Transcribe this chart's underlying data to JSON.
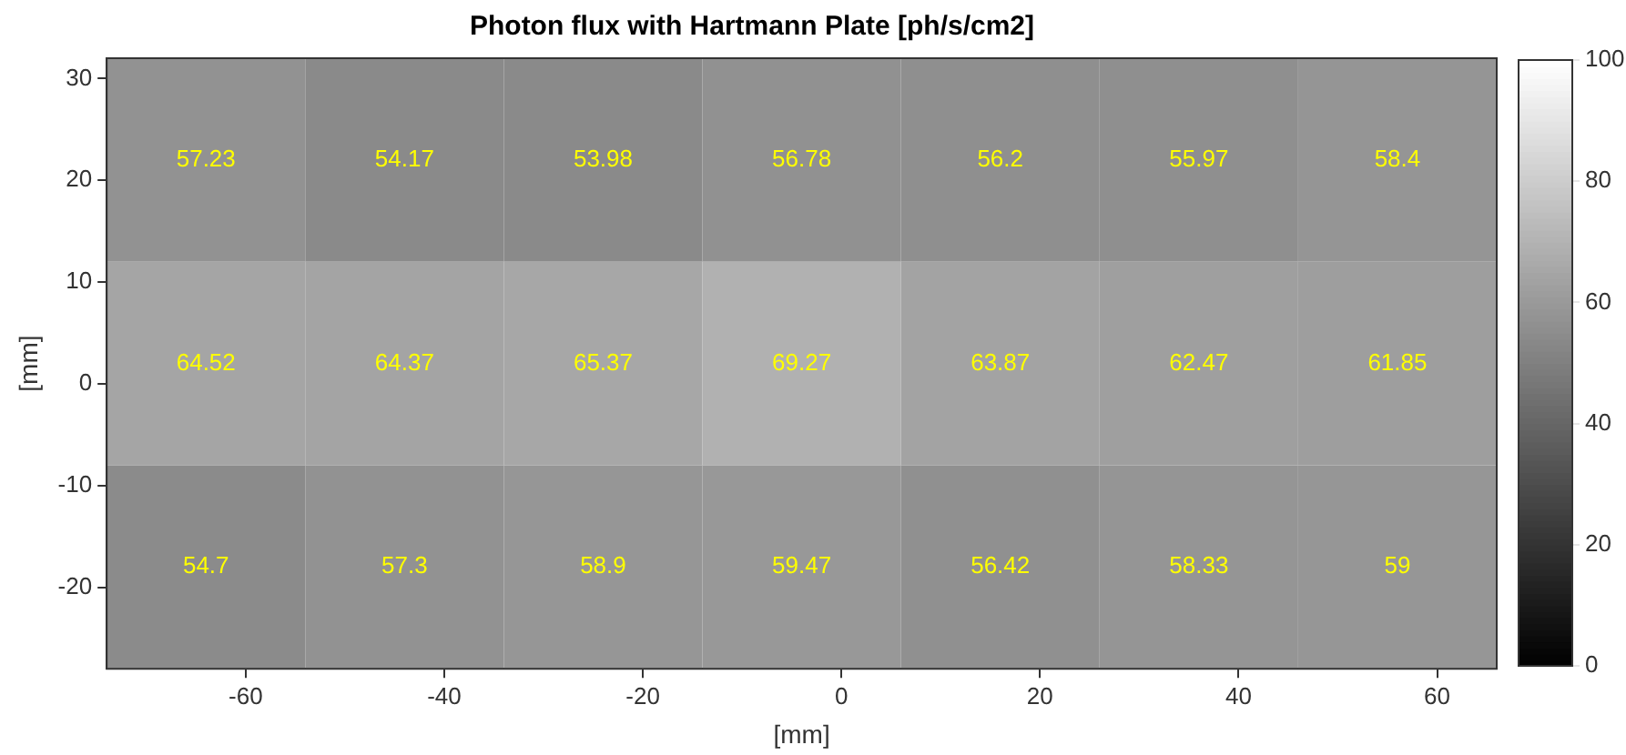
{
  "chart_data": {
    "type": "heatmap",
    "title": "Photon flux with Hartmann Plate [ph/s/cm2]",
    "xlabel": "[mm]",
    "ylabel": "[mm]",
    "x": [
      -64,
      -44,
      -24,
      -4,
      16,
      36,
      56
    ],
    "y": [
      22,
      2,
      -18
    ],
    "cells": [
      [
        57.23,
        54.17,
        53.98,
        56.78,
        56.2,
        55.97,
        58.4
      ],
      [
        64.52,
        64.37,
        65.37,
        69.27,
        63.87,
        62.47,
        61.85
      ],
      [
        54.7,
        57.3,
        58.9,
        59.47,
        56.42,
        58.33,
        59
      ]
    ],
    "data_labels": true,
    "xlim": [
      -74,
      66
    ],
    "xticks": [
      -60,
      -40,
      -20,
      0,
      20,
      40,
      60
    ],
    "ylim": [
      -28,
      32
    ],
    "yticks": [
      -20,
      -10,
      0,
      10,
      20,
      30
    ],
    "clim": [
      0,
      100
    ],
    "cticks": [
      0,
      20,
      40,
      60,
      80,
      100
    ],
    "grid": false
  }
}
